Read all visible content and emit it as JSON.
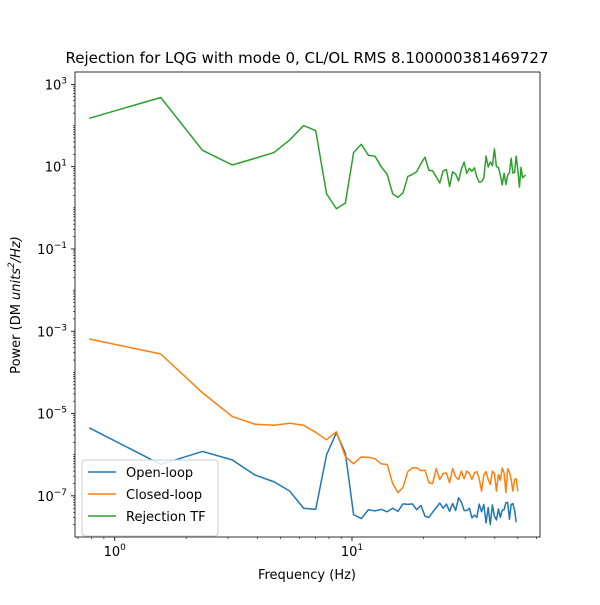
{
  "chart_data": {
    "type": "line",
    "title": "Rejection for LQG with mode 0, CL/OL RMS 8.100000381469727",
    "xlabel": "Frequency (Hz)",
    "ylabel_prefix": "Power (DM ",
    "ylabel_units_base": "units",
    "ylabel_units_exp": "2",
    "ylabel_suffix": "/Hz)",
    "xscale": "log",
    "yscale": "log",
    "xlim": [
      0.68,
      62
    ],
    "ylim": [
      1e-08,
      2000
    ],
    "grid": false,
    "legend_position": "lower left",
    "x_ticks": [
      {
        "value": 1,
        "base": "10",
        "exp": "0"
      },
      {
        "value": 10,
        "base": "10",
        "exp": "1"
      }
    ],
    "y_ticks": [
      {
        "value": 1e-07,
        "base": "10",
        "exp": "−7"
      },
      {
        "value": 1e-05,
        "base": "10",
        "exp": "−5"
      },
      {
        "value": 0.001,
        "base": "10",
        "exp": "−3"
      },
      {
        "value": 0.1,
        "base": "10",
        "exp": "−1"
      },
      {
        "value": 10,
        "base": "10",
        "exp": "1"
      },
      {
        "value": 1000,
        "base": "10",
        "exp": "3"
      }
    ],
    "series": [
      {
        "name": "Open-loop",
        "color": "#1f77b4",
        "points": [
          [
            0.781,
            4.5e-06
          ],
          [
            1.563,
            5.8e-07
          ],
          [
            2.344,
            1.2e-06
          ],
          [
            3.125,
            7.5e-07
          ],
          [
            3.906,
            3.2e-07
          ],
          [
            4.688,
            2.2e-07
          ],
          [
            5.469,
            1.3e-07
          ],
          [
            6.25,
            5e-08
          ],
          [
            7.031,
            4.7e-08
          ],
          [
            7.813,
            1e-06
          ],
          [
            8.594,
            3.4e-06
          ],
          [
            9.375,
            1.1e-06
          ],
          [
            10.156,
            3.5e-08
          ],
          [
            10.938,
            2.8e-08
          ],
          [
            11.719,
            4.6e-08
          ],
          [
            12.5,
            4.3e-08
          ],
          [
            13.281,
            4.7e-08
          ],
          [
            14.063,
            4.1e-08
          ],
          [
            14.844,
            5e-08
          ],
          [
            15.625,
            4.2e-08
          ],
          [
            16.406,
            6.4e-08
          ],
          [
            17.188,
            6.2e-08
          ],
          [
            17.969,
            6.4e-08
          ],
          [
            18.75,
            4.6e-08
          ],
          [
            19.531,
            5.8e-08
          ],
          [
            20.313,
            3.2e-08
          ],
          [
            21.094,
            3e-08
          ],
          [
            21.875,
            4e-08
          ],
          [
            22.656,
            5.2e-08
          ],
          [
            23.438,
            6.7e-08
          ],
          [
            24.219,
            5e-08
          ],
          [
            25.0,
            6.3e-08
          ],
          [
            25.781,
            4.2e-08
          ],
          [
            26.563,
            6.5e-08
          ],
          [
            27.344,
            4.4e-08
          ],
          [
            28.125,
            9e-08
          ],
          [
            28.906,
            7e-08
          ],
          [
            29.688,
            4.4e-08
          ],
          [
            30.469,
            4.4e-08
          ],
          [
            31.25,
            5e-08
          ],
          [
            32.031,
            2.9e-08
          ],
          [
            32.813,
            3.4e-08
          ],
          [
            33.594,
            3e-08
          ],
          [
            34.375,
            6.3e-08
          ],
          [
            35.156,
            4.1e-08
          ],
          [
            35.938,
            6.2e-08
          ],
          [
            36.719,
            2.2e-08
          ],
          [
            37.5,
            5.2e-08
          ],
          [
            38.281,
            2e-08
          ],
          [
            39.063,
            6e-08
          ],
          [
            39.844,
            3.2e-08
          ],
          [
            40.625,
            2.6e-08
          ],
          [
            41.406,
            4.8e-08
          ],
          [
            42.188,
            3e-08
          ],
          [
            42.969,
            4.5e-08
          ],
          [
            43.75,
            4.6e-08
          ],
          [
            44.531,
            6.8e-08
          ],
          [
            45.313,
            6.9e-08
          ],
          [
            46.094,
            2.7e-08
          ],
          [
            46.875,
            6.2e-08
          ],
          [
            47.656,
            6.5e-08
          ],
          [
            48.438,
            4.5e-08
          ],
          [
            49.219,
            2.3e-08
          ]
        ]
      },
      {
        "name": "Closed-loop",
        "color": "#ff7f0e",
        "points": [
          [
            0.781,
            0.00065
          ],
          [
            1.563,
            0.00028
          ],
          [
            2.344,
            3.2e-05
          ],
          [
            3.125,
            8.5e-06
          ],
          [
            3.906,
            5.5e-06
          ],
          [
            4.688,
            5.2e-06
          ],
          [
            5.469,
            5.8e-06
          ],
          [
            6.25,
            5.2e-06
          ],
          [
            7.031,
            3.5e-06
          ],
          [
            7.813,
            2.3e-06
          ],
          [
            8.594,
            3.6e-06
          ],
          [
            9.375,
            9e-07
          ],
          [
            10.156,
            6e-07
          ],
          [
            10.938,
            8.8e-07
          ],
          [
            11.719,
            8.6e-07
          ],
          [
            12.5,
            8e-07
          ],
          [
            13.281,
            6e-07
          ],
          [
            14.063,
            5.8e-07
          ],
          [
            14.844,
            2e-07
          ],
          [
            15.625,
            1.2e-07
          ],
          [
            16.406,
            1.6e-07
          ],
          [
            17.188,
            3.9e-07
          ],
          [
            17.969,
            4.8e-07
          ],
          [
            18.75,
            4.8e-07
          ],
          [
            19.531,
            4.1e-07
          ],
          [
            20.313,
            4.2e-07
          ],
          [
            21.094,
            2.1e-07
          ],
          [
            21.875,
            2e-07
          ],
          [
            22.656,
            4.6e-07
          ],
          [
            23.438,
            2.5e-07
          ],
          [
            24.219,
            3.5e-07
          ],
          [
            25.0,
            3.6e-07
          ],
          [
            25.781,
            2.1e-07
          ],
          [
            26.563,
            4.6e-07
          ],
          [
            27.344,
            2.9e-07
          ],
          [
            28.125,
            2.5e-07
          ],
          [
            28.906,
            4e-07
          ],
          [
            29.688,
            2.6e-07
          ],
          [
            30.469,
            4e-07
          ],
          [
            31.25,
            3.5e-07
          ],
          [
            32.031,
            2.5e-07
          ],
          [
            32.813,
            3.6e-07
          ],
          [
            33.594,
            3.9e-07
          ],
          [
            34.375,
            2.6e-07
          ],
          [
            35.156,
            1.3e-07
          ],
          [
            35.938,
            3.2e-07
          ],
          [
            36.719,
            3.9e-07
          ],
          [
            37.5,
            2.5e-07
          ],
          [
            38.281,
            1.9e-07
          ],
          [
            39.063,
            4e-07
          ],
          [
            39.844,
            3.5e-07
          ],
          [
            40.625,
            1.3e-07
          ],
          [
            41.406,
            3.3e-07
          ],
          [
            42.188,
            2.4e-07
          ],
          [
            42.969,
            4.7e-07
          ],
          [
            43.75,
            3.6e-07
          ],
          [
            44.531,
            1.2e-07
          ],
          [
            45.313,
            4.6e-07
          ],
          [
            46.094,
            3.8e-07
          ],
          [
            46.875,
            2.5e-07
          ],
          [
            47.656,
            1.3e-07
          ],
          [
            48.438,
            2.5e-07
          ],
          [
            49.219,
            2.6e-07
          ],
          [
            50.0,
            1.3e-07
          ]
        ]
      },
      {
        "name": "Rejection TF",
        "color": "#2ca02c",
        "points": [
          [
            0.781,
            150
          ],
          [
            1.563,
            480
          ],
          [
            2.344,
            25
          ],
          [
            3.125,
            11
          ],
          [
            3.906,
            16
          ],
          [
            4.688,
            22
          ],
          [
            5.469,
            45
          ],
          [
            6.25,
            100
          ],
          [
            7.031,
            75
          ],
          [
            7.813,
            2.2
          ],
          [
            8.594,
            0.95
          ],
          [
            9.375,
            1.3
          ],
          [
            10.156,
            22
          ],
          [
            10.938,
            35
          ],
          [
            11.719,
            19
          ],
          [
            12.5,
            18
          ],
          [
            13.281,
            10
          ],
          [
            14.063,
            6.5
          ],
          [
            14.844,
            2.2
          ],
          [
            15.625,
            1.8
          ],
          [
            16.406,
            2.3
          ],
          [
            17.188,
            5.8
          ],
          [
            17.969,
            6.5
          ],
          [
            18.75,
            7.6
          ],
          [
            19.531,
            12
          ],
          [
            20.313,
            17
          ],
          [
            21.094,
            8.2
          ],
          [
            21.875,
            7.9
          ],
          [
            22.656,
            5.6
          ],
          [
            23.438,
            4.0
          ],
          [
            24.219,
            7.9
          ],
          [
            25.0,
            8.5
          ],
          [
            25.781,
            3.3
          ],
          [
            26.563,
            7.5
          ],
          [
            27.344,
            6.6
          ],
          [
            28.125,
            4.5
          ],
          [
            28.906,
            8.7
          ],
          [
            29.688,
            13
          ],
          [
            30.469,
            6.9
          ],
          [
            31.25,
            9.1
          ],
          [
            32.031,
            7.7
          ],
          [
            32.813,
            9.4
          ],
          [
            33.594,
            5.6
          ],
          [
            34.375,
            4.2
          ],
          [
            35.156,
            4.3
          ],
          [
            35.938,
            5.3
          ],
          [
            36.719,
            18
          ],
          [
            37.5,
            9.8
          ],
          [
            38.281,
            13
          ],
          [
            39.063,
            10.5
          ],
          [
            39.844,
            27
          ],
          [
            40.625,
            10
          ],
          [
            41.406,
            9.6
          ],
          [
            42.188,
            6.2
          ],
          [
            42.969,
            3.6
          ],
          [
            43.75,
            6.9
          ],
          [
            44.531,
            3.7
          ],
          [
            45.313,
            6.3
          ],
          [
            46.094,
            7.1
          ],
          [
            46.875,
            16
          ],
          [
            47.656,
            7.0
          ],
          [
            48.438,
            7.2
          ],
          [
            49.219,
            18
          ],
          [
            50.0,
            8.3
          ],
          [
            50.781,
            3.2
          ],
          [
            51.563,
            9.6
          ],
          [
            52.344,
            5.4
          ],
          [
            53.125,
            5.8
          ],
          [
            53.906,
            6.3
          ]
        ]
      }
    ]
  }
}
